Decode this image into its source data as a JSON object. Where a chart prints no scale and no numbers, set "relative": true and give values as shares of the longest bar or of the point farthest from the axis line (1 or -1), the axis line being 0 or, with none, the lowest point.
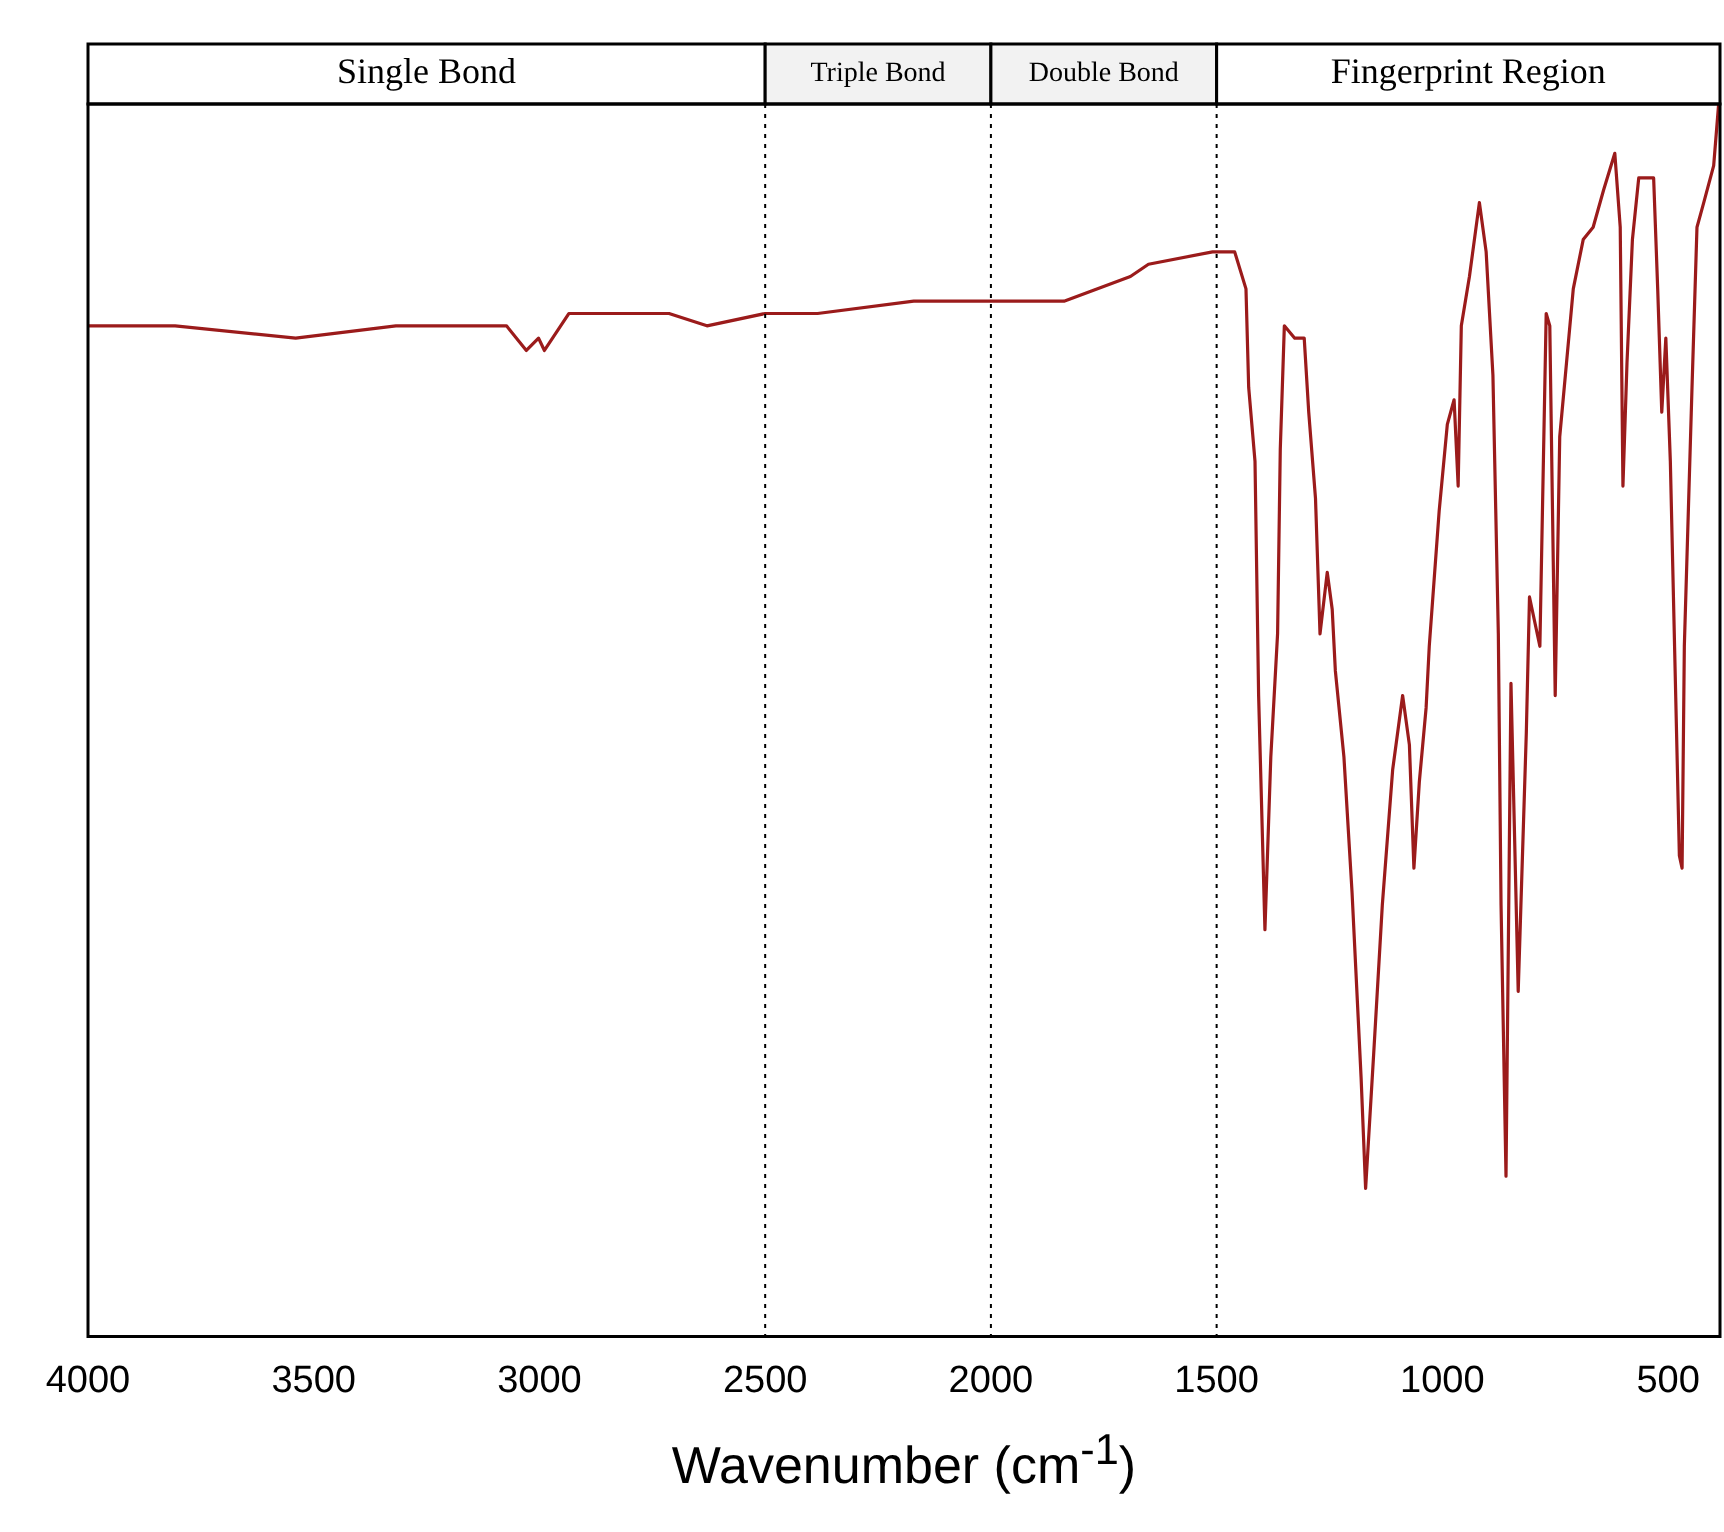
{
  "chart_data": {
    "type": "line",
    "xlabel": "Wavenumber (cm$^{-1}$)",
    "relative": true,
    "xlim": [
      4000,
      385
    ],
    "xticks": [
      4000,
      3500,
      3000,
      2500,
      2000,
      1500,
      1000,
      500
    ],
    "tick_labels": "x",
    "grid": false,
    "marker": "none",
    "line_style": "solid",
    "x": [
      4000,
      3807,
      3540,
      3318,
      3096,
      3073,
      3029,
      3002,
      2989,
      2935,
      2713,
      2629,
      2500,
      2384,
      2171,
      2158,
      1998,
      1838,
      1691,
      1651,
      1509,
      1460,
      1435,
      1429,
      1415,
      1407,
      1393,
      1380,
      1365,
      1359,
      1350,
      1327,
      1306,
      1296,
      1281,
      1271,
      1255,
      1244,
      1237,
      1218,
      1200,
      1180,
      1170,
      1152,
      1133,
      1110,
      1088,
      1073,
      1063,
      1051,
      1036,
      1029,
      1007,
      989,
      974,
      965,
      958,
      940,
      918,
      903,
      888,
      876,
      870,
      859,
      848,
      832,
      814,
      807,
      784,
      770,
      762,
      750,
      740,
      725,
      710,
      688,
      666,
      643,
      618,
      606,
      600,
      591,
      579,
      565,
      532,
      523,
      514,
      505,
      495,
      475,
      469,
      464,
      447,
      436,
      421,
      399,
      388
    ],
    "series": [
      {
        "color": "#9b1b1b",
        "values": [
          0.82,
          0.82,
          0.81,
          0.82,
          0.82,
          0.82,
          0.8,
          0.81,
          0.8,
          0.83,
          0.83,
          0.82,
          0.83,
          0.83,
          0.84,
          0.84,
          0.84,
          0.84,
          0.86,
          0.87,
          0.88,
          0.88,
          0.85,
          0.77,
          0.71,
          0.52,
          0.33,
          0.47,
          0.57,
          0.72,
          0.82,
          0.81,
          0.81,
          0.75,
          0.68,
          0.57,
          0.62,
          0.59,
          0.54,
          0.47,
          0.36,
          0.21,
          0.12,
          0.23,
          0.35,
          0.46,
          0.52,
          0.48,
          0.38,
          0.45,
          0.51,
          0.56,
          0.67,
          0.74,
          0.76,
          0.69,
          0.82,
          0.86,
          0.92,
          0.88,
          0.78,
          0.57,
          0.35,
          0.13,
          0.53,
          0.28,
          0.49,
          0.6,
          0.56,
          0.83,
          0.82,
          0.52,
          0.73,
          0.79,
          0.85,
          0.89,
          0.9,
          0.93,
          0.96,
          0.9,
          0.69,
          0.79,
          0.89,
          0.94,
          0.94,
          0.85,
          0.75,
          0.81,
          0.71,
          0.39,
          0.38,
          0.56,
          0.77,
          0.9,
          0.92,
          0.95,
          1.0
        ]
      }
    ],
    "ref_lines": [
      {
        "axis": "x",
        "value": 2500,
        "line_style": "dotted"
      },
      {
        "axis": "x",
        "value": 2000,
        "line_style": "dotted"
      },
      {
        "axis": "x",
        "value": 1500,
        "line_style": "dotted"
      }
    ],
    "annotations": [
      "Single Bond",
      "Triple Bond",
      "Double Bond",
      "Fingerprint Region"
    ]
  }
}
